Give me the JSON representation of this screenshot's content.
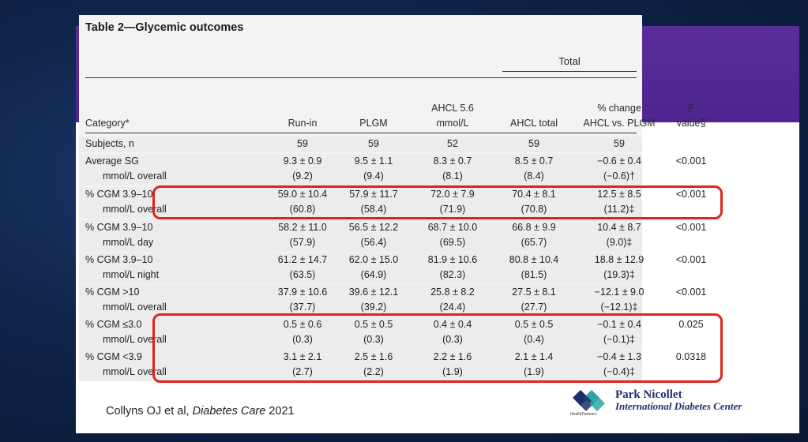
{
  "table": {
    "title": "Table 2—Glycemic outcomes",
    "group_header": "Total",
    "columns": [
      {
        "line1": "",
        "line2": "Category*"
      },
      {
        "line1": "",
        "line2": "Run-in"
      },
      {
        "line1": "",
        "line2": "PLGM"
      },
      {
        "line1": "AHCL 5.6",
        "line2": "mmol/L"
      },
      {
        "line1": "",
        "line2": "AHCL total"
      },
      {
        "line1": "% change",
        "line2": "AHCL vs. PLGM"
      },
      {
        "line1": "P",
        "line2": "value§"
      }
    ],
    "rows": [
      {
        "c0": [
          "Subjects, n",
          ""
        ],
        "c1": [
          "59",
          ""
        ],
        "c2": [
          "59",
          ""
        ],
        "c3": [
          "52",
          ""
        ],
        "c4": [
          "59",
          ""
        ],
        "c5": [
          "59",
          ""
        ],
        "c6": [
          "",
          ""
        ]
      },
      {
        "c0": [
          "Average SG",
          "mmol/L overall"
        ],
        "c1": [
          "9.3 ± 0.9",
          "(9.2)"
        ],
        "c2": [
          "9.5 ± 1.1",
          "(9.4)"
        ],
        "c3": [
          "8.3 ± 0.7",
          "(8.1)"
        ],
        "c4": [
          "8.5 ± 0.7",
          "(8.4)"
        ],
        "c5": [
          "−0.6 ± 0.4",
          "(−0.6)†"
        ],
        "c6": [
          "<0.001",
          ""
        ]
      },
      {
        "c0": [
          "% CGM 3.9–10",
          "mmol/L overall"
        ],
        "c1": [
          "59.0 ± 10.4",
          "(60.8)"
        ],
        "c2": [
          "57.9 ± 11.7",
          "(58.4)"
        ],
        "c3": [
          "72.0 ± 7.9",
          "(71.9)"
        ],
        "c4": [
          "70.4 ± 8.1",
          "(70.8)"
        ],
        "c5": [
          "12.5 ± 8.5",
          "(11.2)‡"
        ],
        "c6": [
          "<0.001",
          ""
        ]
      },
      {
        "c0": [
          "% CGM 3.9–10",
          "mmol/L day"
        ],
        "c1": [
          "58.2 ± 11.0",
          "(57.9)"
        ],
        "c2": [
          "56.5 ± 12.2",
          "(56.4)"
        ],
        "c3": [
          "68.7 ± 10.0",
          "(69.5)"
        ],
        "c4": [
          "66.8 ± 9.9",
          "(65.7)"
        ],
        "c5": [
          "10.4 ± 8.7",
          "(9.0)‡"
        ],
        "c6": [
          "<0.001",
          ""
        ]
      },
      {
        "c0": [
          "% CGM 3.9–10",
          "mmol/L night"
        ],
        "c1": [
          "61.2 ± 14.7",
          "(63.5)"
        ],
        "c2": [
          "62.0 ± 15.0",
          "(64.9)"
        ],
        "c3": [
          "81.9 ± 10.6",
          "(82.3)"
        ],
        "c4": [
          "80.8 ± 10.4",
          "(81.5)"
        ],
        "c5": [
          "18.8 ± 12.9",
          "(19.3)‡"
        ],
        "c6": [
          "<0.001",
          ""
        ]
      },
      {
        "c0": [
          "% CGM >10",
          "mmol/L overall"
        ],
        "c1": [
          "37.9 ± 10.6",
          "(37.7)"
        ],
        "c2": [
          "39.6 ± 12.1",
          "(39.2)"
        ],
        "c3": [
          "25.8 ± 8.2",
          "(24.4)"
        ],
        "c4": [
          "27.5 ± 8.1",
          "(27.7)"
        ],
        "c5": [
          "−12.1 ± 9.0",
          "(−12.1)‡"
        ],
        "c6": [
          "<0.001",
          ""
        ]
      },
      {
        "c0": [
          "% CGM ≤3.0",
          "mmol/L overall"
        ],
        "c1": [
          "0.5 ± 0.6",
          "(0.3)"
        ],
        "c2": [
          "0.5 ± 0.5",
          "(0.3)"
        ],
        "c3": [
          "0.4 ± 0.4",
          "(0.3)"
        ],
        "c4": [
          "0.5 ± 0.5",
          "(0.4)"
        ],
        "c5": [
          "−0.1 ± 0.4",
          "(−0.1)‡"
        ],
        "c6": [
          "0.025",
          ""
        ]
      },
      {
        "c0": [
          "% CGM <3.9",
          "mmol/L overall"
        ],
        "c1": [
          "3.1 ± 2.1",
          "(2.7)"
        ],
        "c2": [
          "2.5 ± 1.6",
          "(2.2)"
        ],
        "c3": [
          "2.2 ± 1.6",
          "(1.9)"
        ],
        "c4": [
          "2.1 ± 1.4",
          "(1.9)"
        ],
        "c5": [
          "−0.4 ± 1.3",
          "(−0.4)‡"
        ],
        "c6": [
          "0.0318",
          ""
        ]
      }
    ]
  },
  "citation": {
    "prefix": "Collyns OJ et al, ",
    "journal": "Diabetes Care",
    "year": " 2021"
  },
  "logo": {
    "name": "Park Nicollet",
    "sub": "International Diabetes Center",
    "small": "HealthPartners"
  },
  "colors": {
    "accent_band": "#5b2c9a",
    "highlight": "#e0231b",
    "logo_navy": "#1d2f6b",
    "logo_teal": "#2aa6a6"
  }
}
